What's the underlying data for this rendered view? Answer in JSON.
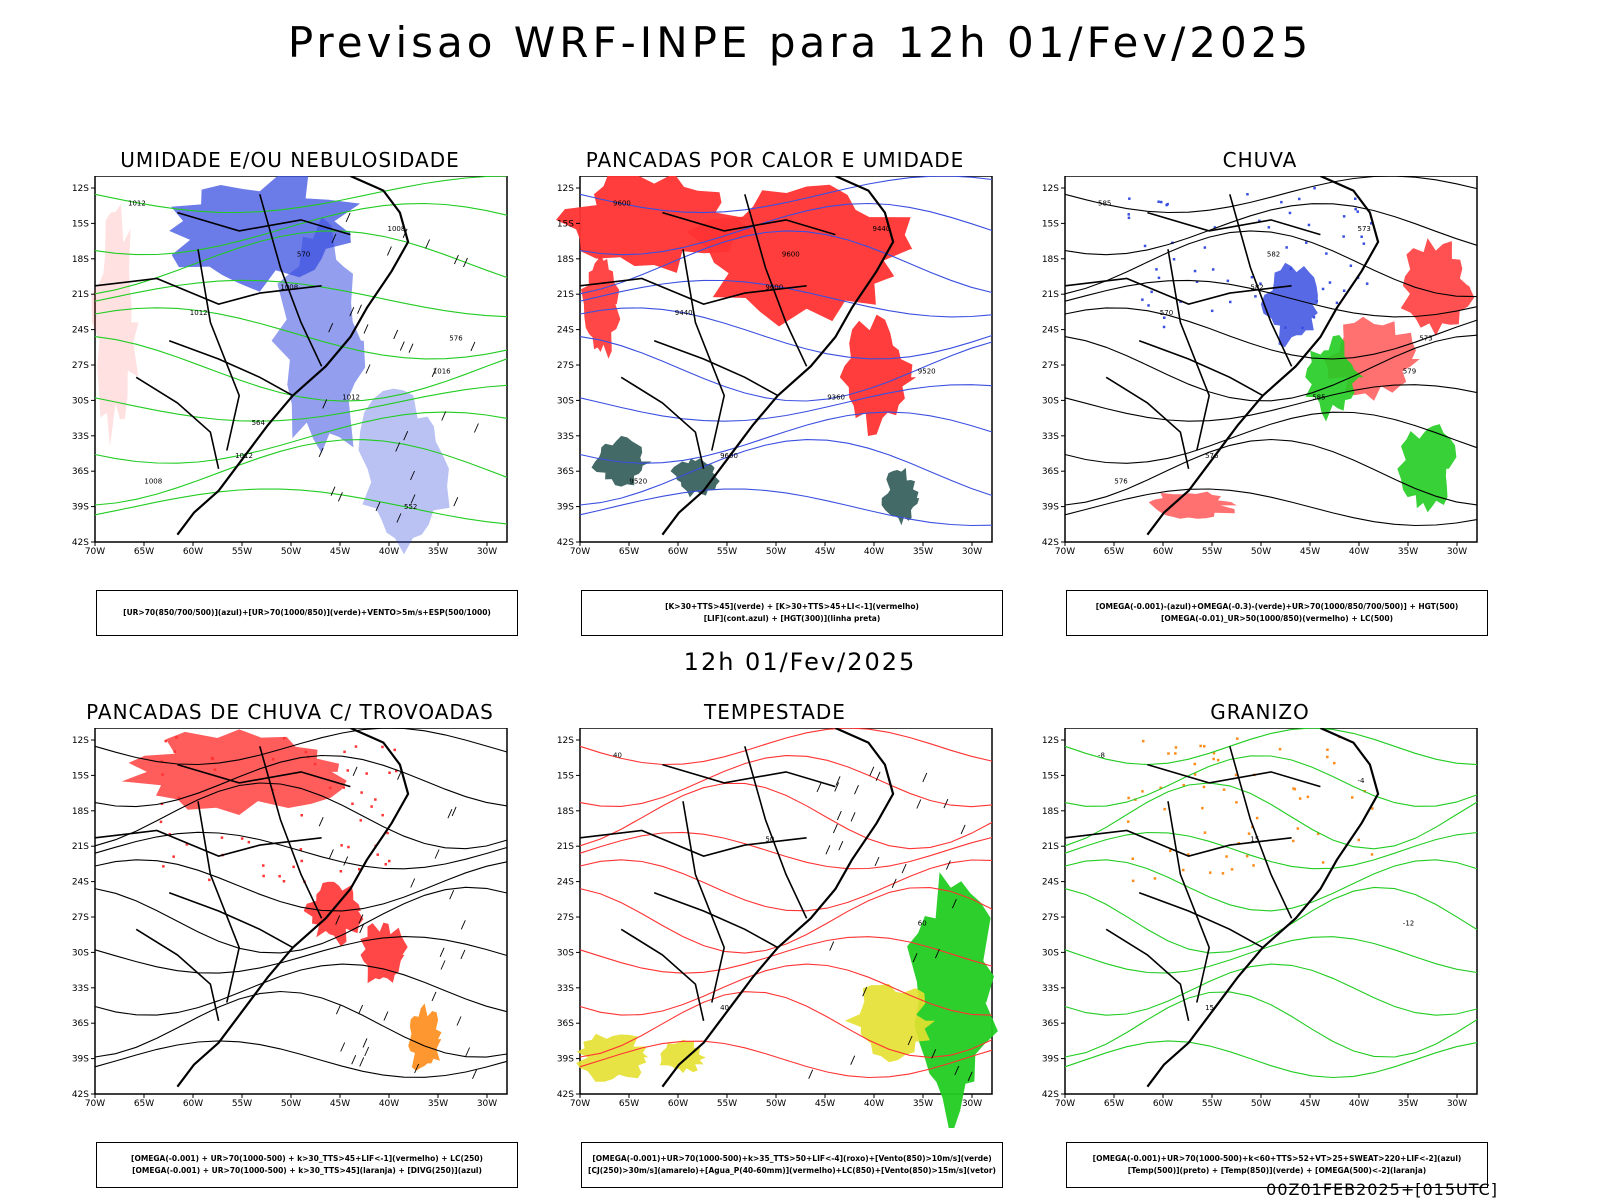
{
  "title": "Previsao WRF-INPE  para 12h 01/Fev/2025",
  "mid_title": "12h 01/Fev/2025",
  "run_stamp": "00Z01FEB2025+[015UTC]",
  "colors": {
    "blue": "#3a4fe0",
    "green": "#22cc22",
    "red": "#ff3333",
    "dark_teal": "#2f5a55",
    "orange": "#ff8c1a",
    "yellow": "#e6e030",
    "black": "#000000"
  },
  "chart_data": [
    {
      "type": "map",
      "title": "UMIDADE E/OU NEBULOSIDADE",
      "lat_ticks": [
        "12S",
        "15S",
        "18S",
        "21S",
        "24S",
        "27S",
        "30S",
        "33S",
        "36S",
        "39S",
        "42S"
      ],
      "lon_ticks": [
        "70W",
        "65W",
        "60W",
        "55W",
        "50W",
        "45W",
        "40W",
        "35W",
        "30W"
      ],
      "contour_labels": [
        "1012",
        "1008",
        "1016",
        "1012",
        "1008",
        "1012",
        "1012",
        "1008",
        "570",
        "576",
        "564",
        "552"
      ],
      "legend": [
        "[UR>70(850/700/500)](azul)+[UR>70(1000/850)](verde)+VENTO>5m/s+ESP(500/1000)"
      ]
    },
    {
      "type": "map",
      "title": "PANCADAS POR CALOR E UMIDADE",
      "lat_ticks": [
        "12S",
        "15S",
        "18S",
        "21S",
        "24S",
        "27S",
        "30S",
        "33S",
        "36S",
        "39S",
        "42S"
      ],
      "lon_ticks": [
        "70W",
        "65W",
        "60W",
        "55W",
        "50W",
        "45W",
        "40W",
        "35W",
        "30W"
      ],
      "contour_labels": [
        "9600",
        "9600",
        "9520",
        "9600",
        "9440",
        "9440",
        "9360",
        "9520",
        "9600"
      ],
      "legend": [
        "[K>30+TTS>45](verde) + [K>30+TTS>45+LI<-1](vermelho)",
        "[LIF](cont.azul) + [HGT(300)](linha preta)"
      ]
    },
    {
      "type": "map",
      "title": "CHUVA",
      "lat_ticks": [
        "12S",
        "15S",
        "18S",
        "21S",
        "24S",
        "27S",
        "30S",
        "33S",
        "36S",
        "39S",
        "42S"
      ],
      "lon_ticks": [
        "70W",
        "65W",
        "60W",
        "55W",
        "50W",
        "45W",
        "40W",
        "35W",
        "30W"
      ],
      "contour_labels": [
        "585",
        "582",
        "579",
        "576",
        "573",
        "570",
        "585",
        "576",
        "582",
        "573"
      ],
      "legend": [
        "[OMEGA(-0.001)-(azul)+OMEGA(-0.3)-(verde)+UR>70(1000/850/700/500)] + HGT(500)",
        "[OMEGA(-0.01)_UR>50(1000/850)(vermelho) + LC(500)"
      ]
    },
    {
      "type": "map",
      "title": "PANCADAS DE CHUVA C/ TROVOADAS",
      "lat_ticks": [
        "12S",
        "15S",
        "18S",
        "21S",
        "24S",
        "27S",
        "30S",
        "33S",
        "36S",
        "39S",
        "42S"
      ],
      "lon_ticks": [
        "70W",
        "65W",
        "60W",
        "55W",
        "50W",
        "45W",
        "40W",
        "35W",
        "30W"
      ],
      "contour_labels": [],
      "legend": [
        "[OMEGA(-0.001) + UR>70(1000-500) + k>30_TTS>45+LIF<-1](vermelho) + LC(250)",
        "[OMEGA(-0.001) + UR>70(1000-500) + k>30_TTS>45](laranja) + [DIVG(250)](azul)"
      ]
    },
    {
      "type": "map",
      "title": "TEMPESTADE",
      "lat_ticks": [
        "12S",
        "15S",
        "18S",
        "21S",
        "24S",
        "27S",
        "30S",
        "33S",
        "36S",
        "39S",
        "42S"
      ],
      "lon_ticks": [
        "70W",
        "65W",
        "60W",
        "55W",
        "50W",
        "45W",
        "40W",
        "35W",
        "30W"
      ],
      "contour_labels": [
        "40",
        "50",
        "60",
        "40"
      ],
      "legend": [
        "[OMEGA(-0.001)+UR>70(1000-500)+k>35_TTS>50+LIF<-4](roxo)+[Vento(850)>10m/s](verde)",
        "[CJ(250)>30m/s](amarelo)+[Agua_P(40-60mm)](vermelho)+LC(850)+[Vento(850)>15m/s](vetor)"
      ]
    },
    {
      "type": "map",
      "title": "GRANIZO",
      "lat_ticks": [
        "12S",
        "15S",
        "18S",
        "21S",
        "24S",
        "27S",
        "30S",
        "33S",
        "36S",
        "39S",
        "42S"
      ],
      "lon_ticks": [
        "70W",
        "65W",
        "60W",
        "55W",
        "50W",
        "45W",
        "40W",
        "35W",
        "30W"
      ],
      "contour_labels": [
        "-8",
        "15",
        "-12",
        "15",
        "-4"
      ],
      "legend": [
        "[OMEGA(-0.001)+UR>70(1000-500)+k<60+TTS>52+VT>25+SWEAT>220+LIF<-2](azul)",
        "[Temp(500)](preto) + [Temp(850)](verde) + [OMEGA(500)<-2](laranja)"
      ]
    }
  ]
}
